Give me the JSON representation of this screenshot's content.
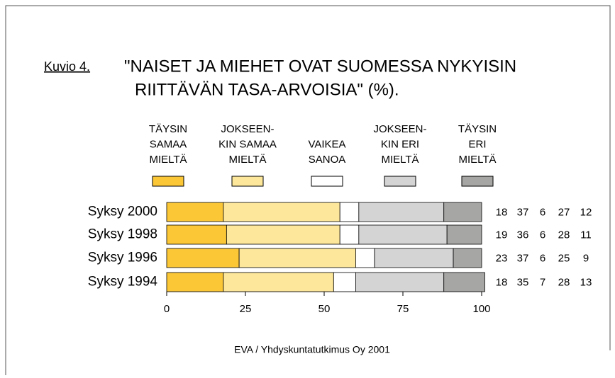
{
  "chart_data": {
    "type": "stacked-bar-horizontal",
    "figure_label": "Kuvio 4.",
    "title_lines": [
      "\"NAISET JA MIEHET OVAT SUOMESSA NYKYISIN",
      "RIITTÄVÄN TASA-ARVOISIA\" (%)."
    ],
    "categories": [
      "Syksy 2000",
      "Syksy 1998",
      "Syksy 1996",
      "Syksy 1994"
    ],
    "series": [
      {
        "name": "TÄYSIN\nSAMAA\nMIELTÄ",
        "color": "#fcc736",
        "values": [
          18,
          19,
          23,
          18
        ]
      },
      {
        "name": "JOKSEEN-\nKIN SAMAA\nMIELTÄ",
        "color": "#fde79a",
        "values": [
          37,
          36,
          37,
          35
        ]
      },
      {
        "name": "VAIKEA\nSANOA",
        "color": "#ffffff",
        "values": [
          6,
          6,
          6,
          7
        ]
      },
      {
        "name": "JOKSEEN-\nKIN ERI\nMIELTÄ",
        "color": "#d4d4d4",
        "values": [
          27,
          28,
          25,
          28
        ]
      },
      {
        "name": "TÄYSIN\nERI\nMIELTÄ",
        "color": "#a6a6a5",
        "values": [
          12,
          11,
          9,
          13
        ]
      }
    ],
    "xlim": [
      0,
      100
    ],
    "xticks": [
      0,
      25,
      50,
      75,
      100
    ],
    "source": "EVA / Yhdyskuntatutkimus Oy 2001"
  }
}
